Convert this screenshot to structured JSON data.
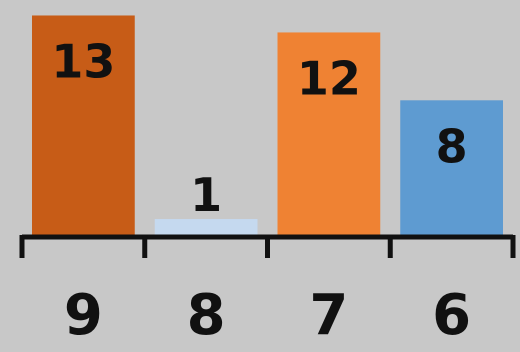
{
  "chart_data": {
    "type": "bar",
    "title": "",
    "xlabel": "",
    "ylabel": "",
    "categories": [
      "9",
      "8",
      "7",
      "6"
    ],
    "values": [
      13,
      1,
      12,
      8
    ],
    "data_labels": [
      "13",
      "1",
      "12",
      "8"
    ],
    "colors": [
      "#c75c17",
      "#c5d9ef",
      "#ef8233",
      "#5e9bd1"
    ],
    "ylim": [
      0,
      13.5
    ],
    "grid": false,
    "legend": "none"
  },
  "colors": {
    "background": "#c8c8c8",
    "axis": "#111111",
    "text": "#111111"
  }
}
